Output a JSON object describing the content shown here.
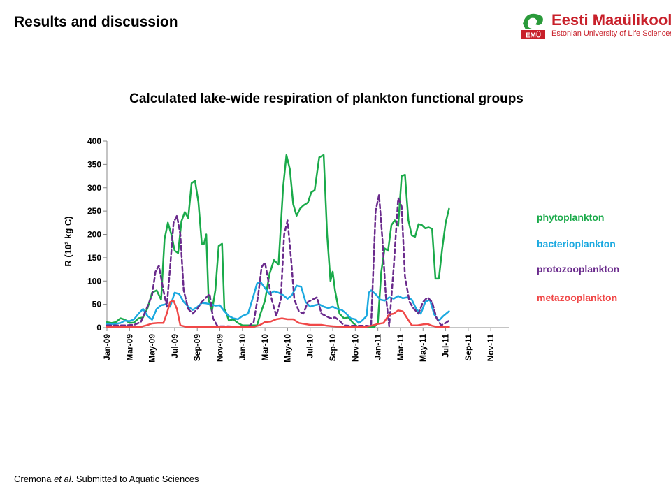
{
  "slide": {
    "heading": "Results and discussion",
    "credit_author": "Cremona ",
    "credit_etal": "et al",
    "credit_rest": ". Submitted to Aquatic Sciences"
  },
  "logo": {
    "name": "Eesti Maaülikool",
    "badge": "EMÜ",
    "subtitle": "Estonian University of Life Sciences",
    "color": "#c8202a",
    "accent": "#2a9a3a"
  },
  "chart_data": {
    "type": "line",
    "title": "Calculated lake-wide respiration of plankton functional groups",
    "ylabel": "R (10³ kg C)",
    "xlabel": "",
    "ylim": [
      0,
      400
    ],
    "yticks": [
      0,
      50,
      100,
      150,
      200,
      250,
      300,
      350,
      400
    ],
    "xlim": [
      0,
      35.6
    ],
    "xticks": [
      {
        "label": "Jan-09",
        "x": 0
      },
      {
        "label": "Mar-09",
        "x": 2
      },
      {
        "label": "May-09",
        "x": 4
      },
      {
        "label": "Jul-09",
        "x": 6
      },
      {
        "label": "Sep-09",
        "x": 8
      },
      {
        "label": "Nov-09",
        "x": 10
      },
      {
        "label": "Jan-10",
        "x": 12
      },
      {
        "label": "Mar-10",
        "x": 14
      },
      {
        "label": "May-10",
        "x": 16
      },
      {
        "label": "Jul-10",
        "x": 18
      },
      {
        "label": "Sep-10",
        "x": 20
      },
      {
        "label": "Nov-10",
        "x": 22
      },
      {
        "label": "Jan-11",
        "x": 24
      },
      {
        "label": "Mar-11",
        "x": 26
      },
      {
        "label": "May-11",
        "x": 28
      },
      {
        "label": "Jul-11",
        "x": 30
      },
      {
        "label": "Sep-11",
        "x": 32
      },
      {
        "label": "Nov-11",
        "x": 34
      }
    ],
    "grid": false,
    "legend_position": "right",
    "series": [
      {
        "name": "phytoplankton",
        "color": "#1aaa4a",
        "dash": "solid",
        "points": [
          [
            0,
            12
          ],
          [
            0.4,
            10
          ],
          [
            0.8,
            12
          ],
          [
            1.2,
            20
          ],
          [
            1.6,
            17
          ],
          [
            2,
            10
          ],
          [
            2.4,
            11
          ],
          [
            2.8,
            20
          ],
          [
            3.2,
            22
          ],
          [
            3.6,
            42
          ],
          [
            4,
            75
          ],
          [
            4.4,
            80
          ],
          [
            4.8,
            60
          ],
          [
            5.1,
            190
          ],
          [
            5.4,
            225
          ],
          [
            5.7,
            200
          ],
          [
            6,
            165
          ],
          [
            6.3,
            160
          ],
          [
            6.6,
            228
          ],
          [
            6.9,
            248
          ],
          [
            7.2,
            235
          ],
          [
            7.5,
            310
          ],
          [
            7.8,
            315
          ],
          [
            8.1,
            270
          ],
          [
            8.4,
            180
          ],
          [
            8.6,
            180
          ],
          [
            8.8,
            200
          ],
          [
            9,
            60
          ],
          [
            9.3,
            35
          ],
          [
            9.6,
            80
          ],
          [
            9.9,
            175
          ],
          [
            10.2,
            180
          ],
          [
            10.4,
            40
          ],
          [
            10.6,
            30
          ],
          [
            10.8,
            15
          ],
          [
            11.2,
            18
          ],
          [
            11.6,
            10
          ],
          [
            12,
            5
          ],
          [
            12.5,
            5
          ],
          [
            13,
            5
          ],
          [
            13.3,
            5
          ],
          [
            13.6,
            30
          ],
          [
            14,
            58
          ],
          [
            14.4,
            115
          ],
          [
            14.8,
            145
          ],
          [
            15.2,
            135
          ],
          [
            15.6,
            300
          ],
          [
            15.9,
            370
          ],
          [
            16.2,
            340
          ],
          [
            16.5,
            265
          ],
          [
            16.8,
            240
          ],
          [
            17.1,
            255
          ],
          [
            17.4,
            262
          ],
          [
            17.8,
            268
          ],
          [
            18.1,
            290
          ],
          [
            18.4,
            295
          ],
          [
            18.8,
            365
          ],
          [
            19.2,
            370
          ],
          [
            19.5,
            200
          ],
          [
            19.8,
            100
          ],
          [
            20,
            120
          ],
          [
            20.2,
            80
          ],
          [
            20.6,
            30
          ],
          [
            21,
            20
          ],
          [
            21.4,
            22
          ],
          [
            21.8,
            10
          ],
          [
            22.2,
            2
          ],
          [
            22.6,
            2
          ],
          [
            23,
            2
          ],
          [
            23.4,
            1
          ],
          [
            23.7,
            2
          ],
          [
            24,
            10
          ],
          [
            24.3,
            120
          ],
          [
            24.6,
            170
          ],
          [
            24.9,
            165
          ],
          [
            25.2,
            220
          ],
          [
            25.5,
            230
          ],
          [
            25.8,
            218
          ],
          [
            26.1,
            325
          ],
          [
            26.4,
            328
          ],
          [
            26.7,
            230
          ],
          [
            27,
            198
          ],
          [
            27.3,
            195
          ],
          [
            27.6,
            222
          ],
          [
            27.9,
            220
          ],
          [
            28.2,
            213
          ],
          [
            28.5,
            215
          ],
          [
            28.8,
            212
          ],
          [
            29.1,
            105
          ],
          [
            29.4,
            105
          ],
          [
            29.7,
            170
          ],
          [
            30,
            225
          ],
          [
            30.3,
            255
          ]
        ]
      },
      {
        "name": "bacterioplankton",
        "color": "#1ba9e0",
        "dash": "solid",
        "points": [
          [
            0,
            8
          ],
          [
            0.6,
            8
          ],
          [
            1.2,
            10
          ],
          [
            1.6,
            15
          ],
          [
            2,
            14
          ],
          [
            2.4,
            18
          ],
          [
            2.8,
            30
          ],
          [
            3.2,
            40
          ],
          [
            3.6,
            25
          ],
          [
            4,
            17
          ],
          [
            4.4,
            40
          ],
          [
            4.8,
            48
          ],
          [
            5.2,
            50
          ],
          [
            5.6,
            45
          ],
          [
            6,
            75
          ],
          [
            6.4,
            72
          ],
          [
            6.8,
            55
          ],
          [
            7.2,
            45
          ],
          [
            7.6,
            38
          ],
          [
            8,
            44
          ],
          [
            8.4,
            53
          ],
          [
            8.8,
            52
          ],
          [
            9.2,
            50
          ],
          [
            9.6,
            47
          ],
          [
            10,
            48
          ],
          [
            10.4,
            35
          ],
          [
            10.8,
            25
          ],
          [
            11.2,
            20
          ],
          [
            11.6,
            18
          ],
          [
            12,
            25
          ],
          [
            12.5,
            30
          ],
          [
            13,
            70
          ],
          [
            13.3,
            95
          ],
          [
            13.6,
            98
          ],
          [
            14,
            85
          ],
          [
            14.4,
            72
          ],
          [
            14.8,
            78
          ],
          [
            15.2,
            75
          ],
          [
            15.6,
            70
          ],
          [
            16,
            62
          ],
          [
            16.4,
            70
          ],
          [
            16.8,
            90
          ],
          [
            17.2,
            88
          ],
          [
            17.6,
            55
          ],
          [
            18,
            45
          ],
          [
            18.4,
            48
          ],
          [
            18.8,
            50
          ],
          [
            19.2,
            45
          ],
          [
            19.6,
            42
          ],
          [
            20,
            45
          ],
          [
            20.4,
            40
          ],
          [
            20.8,
            38
          ],
          [
            21.2,
            30
          ],
          [
            21.6,
            20
          ],
          [
            22,
            18
          ],
          [
            22.3,
            10
          ],
          [
            22.6,
            15
          ],
          [
            23,
            25
          ],
          [
            23.2,
            75
          ],
          [
            23.4,
            80
          ],
          [
            23.8,
            72
          ],
          [
            24.2,
            60
          ],
          [
            24.6,
            58
          ],
          [
            25,
            65
          ],
          [
            25.4,
            62
          ],
          [
            25.8,
            68
          ],
          [
            26.2,
            63
          ],
          [
            26.6,
            65
          ],
          [
            27,
            60
          ],
          [
            27.4,
            40
          ],
          [
            27.8,
            30
          ],
          [
            28.2,
            55
          ],
          [
            28.6,
            60
          ],
          [
            29,
            28
          ],
          [
            29.4,
            15
          ],
          [
            29.8,
            25
          ],
          [
            30.3,
            35
          ]
        ]
      },
      {
        "name": "protozooplankton",
        "color": "#6a2a8c",
        "dash": "dashed",
        "points": [
          [
            0,
            5
          ],
          [
            0.8,
            5
          ],
          [
            1.6,
            5
          ],
          [
            2.4,
            6
          ],
          [
            3,
            12
          ],
          [
            3.5,
            40
          ],
          [
            4,
            70
          ],
          [
            4.3,
            120
          ],
          [
            4.6,
            133
          ],
          [
            5,
            80
          ],
          [
            5.3,
            45
          ],
          [
            5.6,
            130
          ],
          [
            5.9,
            225
          ],
          [
            6.2,
            240
          ],
          [
            6.5,
            200
          ],
          [
            6.8,
            80
          ],
          [
            7.2,
            40
          ],
          [
            7.6,
            30
          ],
          [
            8,
            40
          ],
          [
            8.4,
            55
          ],
          [
            8.8,
            65
          ],
          [
            9.1,
            72
          ],
          [
            9.4,
            20
          ],
          [
            9.8,
            3
          ],
          [
            10.2,
            3
          ],
          [
            10.8,
            3
          ],
          [
            11.4,
            2
          ],
          [
            12,
            2
          ],
          [
            12.5,
            2
          ],
          [
            13,
            12
          ],
          [
            13.4,
            70
          ],
          [
            13.7,
            130
          ],
          [
            14,
            140
          ],
          [
            14.3,
            100
          ],
          [
            14.6,
            60
          ],
          [
            15,
            25
          ],
          [
            15.4,
            60
          ],
          [
            15.7,
            200
          ],
          [
            16,
            230
          ],
          [
            16.3,
            150
          ],
          [
            16.6,
            60
          ],
          [
            17,
            35
          ],
          [
            17.4,
            30
          ],
          [
            17.8,
            55
          ],
          [
            18.2,
            60
          ],
          [
            18.6,
            65
          ],
          [
            19,
            30
          ],
          [
            19.4,
            25
          ],
          [
            19.8,
            20
          ],
          [
            20.2,
            22
          ],
          [
            20.6,
            15
          ],
          [
            21,
            5
          ],
          [
            21.5,
            4
          ],
          [
            22,
            4
          ],
          [
            22.5,
            4
          ],
          [
            23,
            4
          ],
          [
            23.4,
            3
          ],
          [
            23.8,
            250
          ],
          [
            24.1,
            285
          ],
          [
            24.4,
            190
          ],
          [
            24.7,
            70
          ],
          [
            25,
            3
          ],
          [
            25.4,
            130
          ],
          [
            25.8,
            278
          ],
          [
            26.1,
            260
          ],
          [
            26.4,
            110
          ],
          [
            26.8,
            55
          ],
          [
            27.2,
            40
          ],
          [
            27.6,
            30
          ],
          [
            28,
            55
          ],
          [
            28.4,
            65
          ],
          [
            28.8,
            55
          ],
          [
            29.2,
            20
          ],
          [
            29.6,
            5
          ],
          [
            30,
            10
          ],
          [
            30.3,
            15
          ]
        ]
      },
      {
        "name": "metazooplankton",
        "color": "#f04848",
        "dash": "solid",
        "points": [
          [
            0,
            2
          ],
          [
            0.8,
            2
          ],
          [
            1.6,
            2
          ],
          [
            2.4,
            2
          ],
          [
            3,
            2
          ],
          [
            3.5,
            5
          ],
          [
            4,
            9
          ],
          [
            4.5,
            10
          ],
          [
            5,
            10
          ],
          [
            5.3,
            30
          ],
          [
            5.6,
            55
          ],
          [
            5.9,
            58
          ],
          [
            6.2,
            40
          ],
          [
            6.5,
            5
          ],
          [
            7,
            2
          ],
          [
            7.6,
            2
          ],
          [
            8.2,
            2
          ],
          [
            8.8,
            2
          ],
          [
            9.4,
            2
          ],
          [
            10,
            2
          ],
          [
            10.8,
            2
          ],
          [
            11.6,
            2
          ],
          [
            12.4,
            2
          ],
          [
            13,
            2
          ],
          [
            13.5,
            5
          ],
          [
            14,
            12
          ],
          [
            14.5,
            13
          ],
          [
            15,
            18
          ],
          [
            15.5,
            20
          ],
          [
            16,
            18
          ],
          [
            16.5,
            18
          ],
          [
            17,
            10
          ],
          [
            17.5,
            8
          ],
          [
            18,
            6
          ],
          [
            18.5,
            6
          ],
          [
            19,
            6
          ],
          [
            19.5,
            4
          ],
          [
            20,
            3
          ],
          [
            21,
            2
          ],
          [
            22,
            2
          ],
          [
            23,
            2
          ],
          [
            23.4,
            4
          ],
          [
            24,
            8
          ],
          [
            24.5,
            10
          ],
          [
            25,
            28
          ],
          [
            25.4,
            30
          ],
          [
            25.8,
            37
          ],
          [
            26.2,
            35
          ],
          [
            26.6,
            20
          ],
          [
            27,
            5
          ],
          [
            27.5,
            5
          ],
          [
            28,
            7
          ],
          [
            28.4,
            8
          ],
          [
            28.8,
            4
          ],
          [
            29.2,
            2
          ],
          [
            29.6,
            2
          ],
          [
            30,
            2
          ],
          [
            30.3,
            2
          ]
        ]
      }
    ]
  }
}
